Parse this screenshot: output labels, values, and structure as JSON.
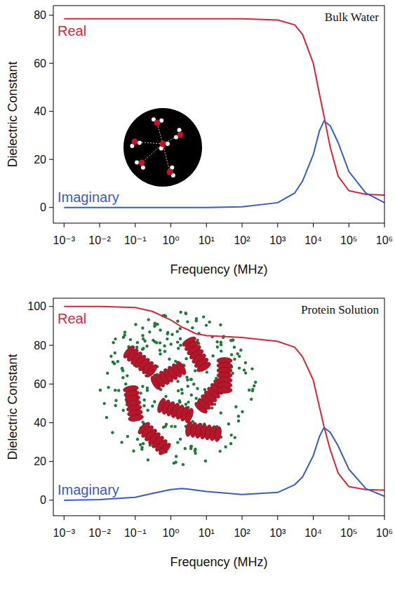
{
  "chart_data": [
    {
      "type": "line",
      "title": "Bulk Water",
      "x_label": "Frequency (MHz)",
      "y_label": "Dielectric Constant",
      "log": "x",
      "grid": false,
      "x": [
        0.001,
        0.01,
        0.1,
        1,
        10,
        100,
        1000,
        3000,
        5000,
        10000,
        15000,
        20000,
        30000,
        50000,
        100000,
        300000,
        1000000
      ],
      "series": [
        {
          "name": "Real",
          "color": "#d6273a",
          "values": [
            78.5,
            78.5,
            78.5,
            78.5,
            78.5,
            78.5,
            78,
            76,
            72,
            60,
            47,
            38,
            25,
            13,
            7,
            5.5,
            5.2
          ]
        },
        {
          "name": "Imaginary",
          "color": "#3a5bc7",
          "values": [
            0,
            0,
            0,
            0,
            0,
            0.3,
            2,
            6,
            11,
            22,
            32,
            36,
            34,
            27,
            15,
            6,
            2
          ]
        }
      ],
      "xlim": [
        0.0005,
        1000000
      ],
      "ylim": [
        -6.5,
        84
      ],
      "xticks": [
        {
          "value": 0.001,
          "label": "10⁻³"
        },
        {
          "value": 0.01,
          "label": "10⁻²"
        },
        {
          "value": 0.1,
          "label": "10⁻¹"
        },
        {
          "value": 1,
          "label": "10⁰"
        },
        {
          "value": 10,
          "label": "10¹"
        },
        {
          "value": 100,
          "label": "10²"
        },
        {
          "value": 1000,
          "label": "10³"
        },
        {
          "value": 10000,
          "label": "10⁴"
        },
        {
          "value": 100000,
          "label": "10⁵"
        },
        {
          "value": 1000000,
          "label": "10⁶"
        }
      ],
      "yticks": [
        0,
        20,
        40,
        60,
        80
      ]
    },
    {
      "type": "line",
      "title": "Protein Solution",
      "x_label": "Frequency (MHz)",
      "y_label": "Dielectric Constant",
      "log": "x",
      "grid": false,
      "x": [
        0.001,
        0.01,
        0.1,
        0.3,
        1,
        2,
        3,
        5,
        10,
        100,
        1000,
        3000,
        5000,
        10000,
        15000,
        20000,
        30000,
        50000,
        100000,
        300000,
        1000000
      ],
      "series": [
        {
          "name": "Real",
          "color": "#d6273a",
          "values": [
            100,
            100,
            99.5,
            97.5,
            93,
            89.5,
            88,
            86,
            85,
            84,
            82,
            79,
            74,
            62,
            48,
            38,
            26,
            14,
            7,
            5.5,
            5.2
          ]
        },
        {
          "name": "Imaginary",
          "color": "#3a5bc7",
          "values": [
            0,
            0.3,
            1.5,
            3.5,
            5.5,
            6,
            5.8,
            5.2,
            4.5,
            3,
            4,
            8,
            12,
            23,
            33,
            37.5,
            35,
            28,
            16,
            6,
            2
          ]
        }
      ],
      "xlim": [
        0.0005,
        1000000
      ],
      "ylim": [
        -8,
        104.3
      ],
      "xticks": [
        {
          "value": 0.001,
          "label": "10⁻³"
        },
        {
          "value": 0.01,
          "label": "10⁻²"
        },
        {
          "value": 0.1,
          "label": "10⁻¹"
        },
        {
          "value": 1,
          "label": "10⁰"
        },
        {
          "value": 10,
          "label": "10¹"
        },
        {
          "value": 100,
          "label": "10²"
        },
        {
          "value": 1000,
          "label": "10³"
        },
        {
          "value": 10000,
          "label": "10⁴"
        },
        {
          "value": 100000,
          "label": "10⁵"
        },
        {
          "value": 1000000,
          "label": "10⁶"
        }
      ],
      "yticks": [
        0,
        20,
        40,
        60,
        80,
        100
      ]
    }
  ]
}
